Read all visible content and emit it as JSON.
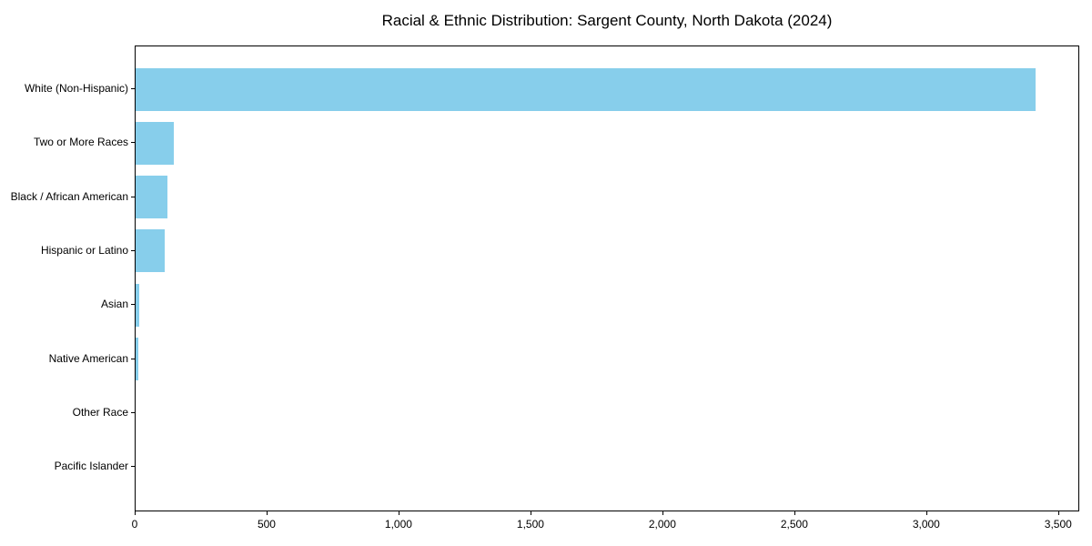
{
  "chart_data": {
    "type": "bar",
    "orientation": "horizontal",
    "title": "Racial & Ethnic Distribution: Sargent County, North Dakota (2024)",
    "categories": [
      "White (Non-Hispanic)",
      "Two or More Races",
      "Black / African American",
      "Hispanic or Latino",
      "Asian",
      "Native American",
      "Other Race",
      "Pacific Islander"
    ],
    "values": [
      3410,
      145,
      120,
      110,
      15,
      10,
      0,
      0
    ],
    "bar_color": "#87CEEB",
    "background_color": "#ffffff",
    "spine_color": "#000000",
    "xlim": [
      0,
      3580
    ],
    "x_ticks": [
      0,
      500,
      1000,
      1500,
      2000,
      2500,
      3000,
      3500
    ],
    "x_tick_labels": [
      "0",
      "500",
      "1,000",
      "1,500",
      "2,000",
      "2,500",
      "3,000",
      "3,500"
    ],
    "xlabel": "",
    "ylabel": "",
    "grid": false,
    "legend": null
  }
}
